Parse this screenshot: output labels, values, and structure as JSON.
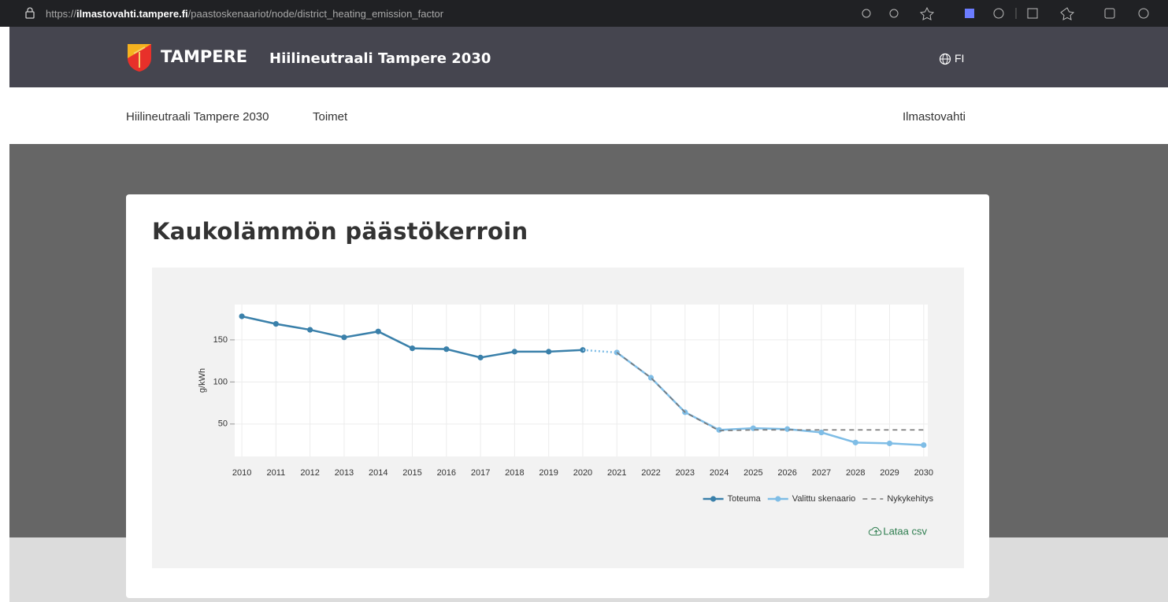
{
  "browser": {
    "url_scheme": "https://",
    "url_host": "ilmastovahti.tampere.fi",
    "url_path": "/paastoskenaariot/node/district_heating_emission_factor"
  },
  "header": {
    "brand": "TAMPERE",
    "site_title": "Hiilineutraali Tampere 2030",
    "language": "FI"
  },
  "nav": {
    "items": [
      "Hiilineutraali Tampere 2030",
      "Toimet"
    ],
    "right": "Ilmastovahti"
  },
  "download": "Lataa csv",
  "chart_data": {
    "type": "line",
    "title": "Kaukolämmön päästökerroin",
    "y_label": "g/kWh",
    "x": [
      2010,
      2011,
      2012,
      2013,
      2014,
      2015,
      2016,
      2017,
      2018,
      2019,
      2020,
      2021,
      2022,
      2023,
      2024,
      2025,
      2026,
      2027,
      2028,
      2029,
      2030
    ],
    "xlim": [
      2009.79,
      2030.12
    ],
    "xticks": [
      2010,
      2011,
      2012,
      2013,
      2014,
      2015,
      2016,
      2017,
      2018,
      2019,
      2020,
      2021,
      2022,
      2023,
      2024,
      2025,
      2026,
      2027,
      2028,
      2029,
      2030
    ],
    "ylim": [
      11.5,
      192
    ],
    "yticks": [
      50,
      100,
      150
    ],
    "grid": true,
    "legend": "bottom-right",
    "series": [
      {
        "name": "Toteuma",
        "color": "#3a80aa",
        "markers": true,
        "dash": false,
        "values": [
          178,
          169,
          162,
          153,
          160,
          140,
          139,
          129,
          136,
          136,
          138,
          null,
          null,
          null,
          null,
          null,
          null,
          null,
          null,
          null,
          null
        ]
      },
      {
        "name": "Valittu skenaario",
        "color": "#7fbde6",
        "markers": true,
        "dash": false,
        "values": [
          null,
          null,
          null,
          null,
          null,
          null,
          null,
          null,
          null,
          null,
          null,
          135,
          105,
          64,
          43,
          45,
          44,
          40,
          28,
          27,
          25
        ]
      },
      {
        "name": "Nykykehitys",
        "color": "#777777",
        "markers": false,
        "dash": true,
        "values": [
          null,
          null,
          null,
          null,
          null,
          null,
          null,
          null,
          null,
          null,
          null,
          135,
          105,
          64,
          42,
          43,
          43,
          43,
          43,
          43,
          43
        ]
      }
    ]
  }
}
